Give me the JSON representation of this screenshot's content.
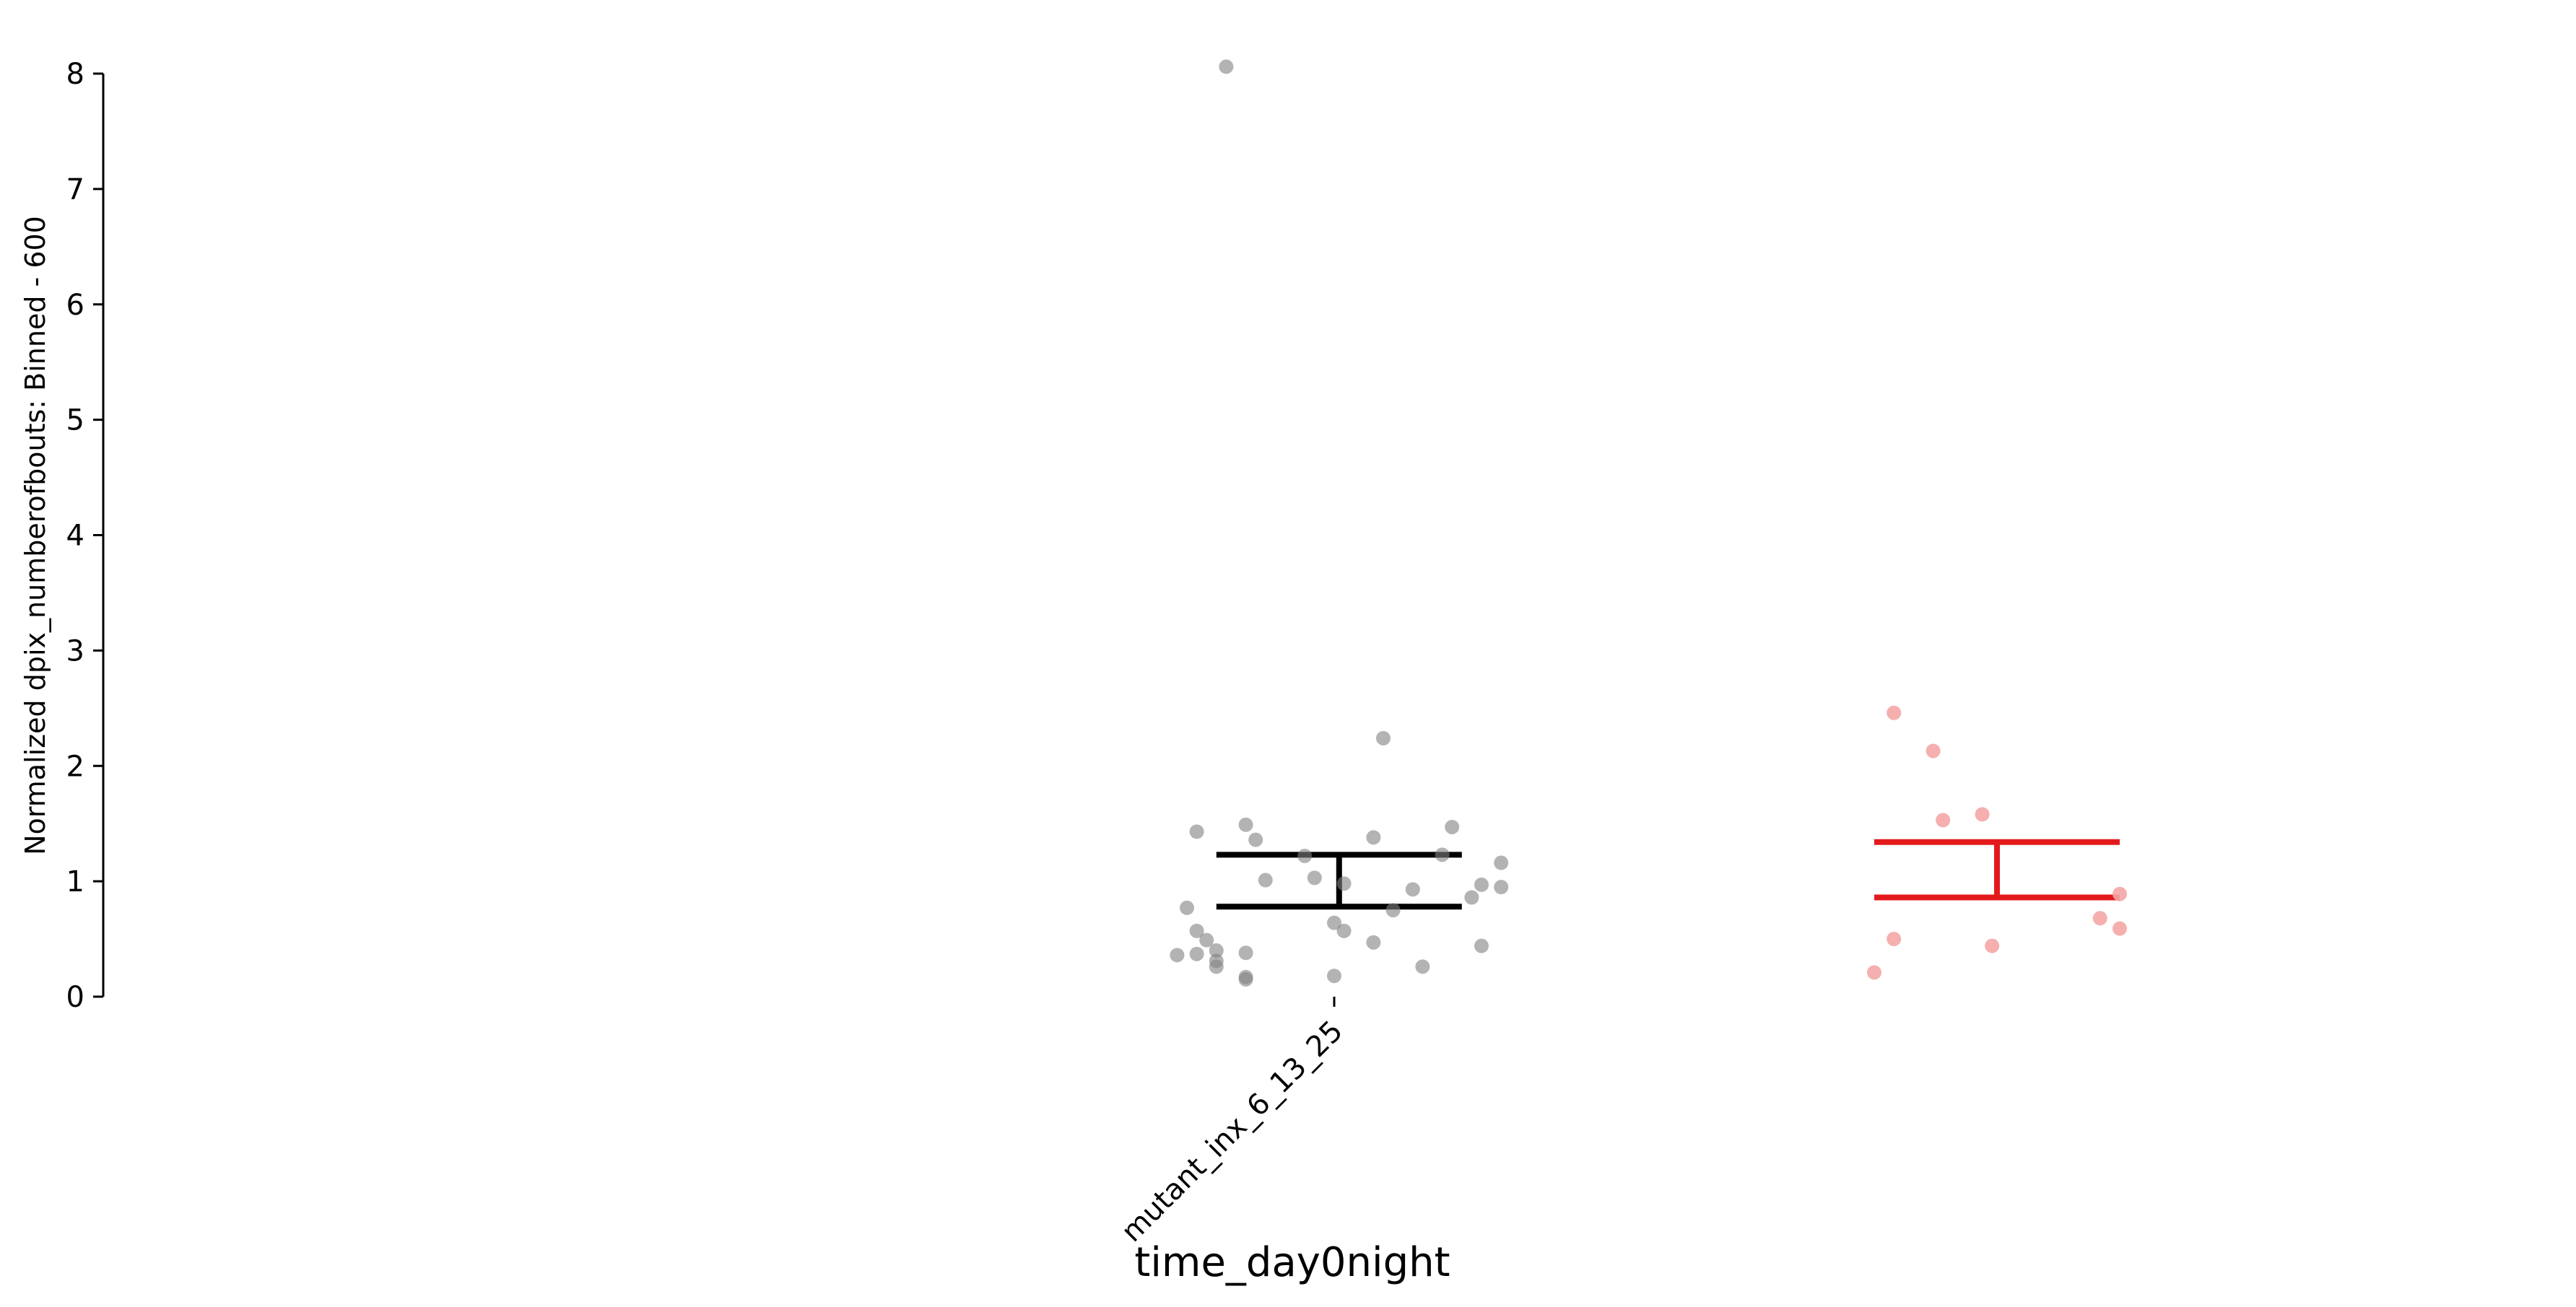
{
  "chart_data": {
    "type": "scatter",
    "subtype": "strip-plot-with-error-bars",
    "title": "",
    "xlabel": "time_day0night",
    "ylabel": "Normalized dpix_numberofbouts: Binned - 600",
    "ylim": [
      0,
      8
    ],
    "yticks": [
      "0",
      "1",
      "2",
      "3",
      "4",
      "5",
      "6",
      "7",
      "8"
    ],
    "categories": [
      "mutant_inx_6_13_25"
    ],
    "grid": false,
    "legend": "none",
    "series": [
      {
        "color": "#808080",
        "error_color": "#000000",
        "mean": 1.0,
        "err_low": 0.78,
        "err_high": 1.23,
        "points": [
          {
            "x": -0.11,
            "y": 8.06
          },
          {
            "x": 0.05,
            "y": 2.24
          },
          {
            "x": -0.14,
            "y": 1.43
          },
          {
            "x": -0.09,
            "y": 1.49
          },
          {
            "x": -0.08,
            "y": 1.36
          },
          {
            "x": -0.03,
            "y": 1.22
          },
          {
            "x": 0.04,
            "y": 1.38
          },
          {
            "x": 0.12,
            "y": 1.47
          },
          {
            "x": 0.11,
            "y": 1.23
          },
          {
            "x": 0.17,
            "y": 1.16
          },
          {
            "x": -0.07,
            "y": 1.01
          },
          {
            "x": -0.02,
            "y": 1.03
          },
          {
            "x": 0.01,
            "y": 0.98
          },
          {
            "x": 0.08,
            "y": 0.93
          },
          {
            "x": 0.15,
            "y": 0.97
          },
          {
            "x": 0.17,
            "y": 0.95
          },
          {
            "x": 0.14,
            "y": 0.86
          },
          {
            "x": -0.15,
            "y": 0.77
          },
          {
            "x": 0.06,
            "y": 0.75
          },
          {
            "x": 0.0,
            "y": 0.64
          },
          {
            "x": 0.01,
            "y": 0.57
          },
          {
            "x": -0.14,
            "y": 0.57
          },
          {
            "x": -0.13,
            "y": 0.49
          },
          {
            "x": 0.04,
            "y": 0.47
          },
          {
            "x": 0.15,
            "y": 0.44
          },
          {
            "x": -0.16,
            "y": 0.36
          },
          {
            "x": -0.14,
            "y": 0.37
          },
          {
            "x": -0.12,
            "y": 0.4
          },
          {
            "x": -0.09,
            "y": 0.38
          },
          {
            "x": -0.12,
            "y": 0.31
          },
          {
            "x": -0.12,
            "y": 0.26
          },
          {
            "x": 0.09,
            "y": 0.26
          },
          {
            "x": -0.09,
            "y": 0.17
          },
          {
            "x": -0.09,
            "y": 0.15
          },
          {
            "x": 0.0,
            "y": 0.18
          }
        ]
      },
      {
        "color": "#f4a6a6",
        "error_color": "#e31a1c",
        "mean": 1.1,
        "err_low": 0.86,
        "err_high": 1.34,
        "points": [
          {
            "x": 0.57,
            "y": 2.46
          },
          {
            "x": 0.61,
            "y": 2.13
          },
          {
            "x": 0.62,
            "y": 1.53
          },
          {
            "x": 0.66,
            "y": 1.58
          },
          {
            "x": 0.8,
            "y": 0.89
          },
          {
            "x": 0.78,
            "y": 0.68
          },
          {
            "x": 0.8,
            "y": 0.59
          },
          {
            "x": 0.57,
            "y": 0.5
          },
          {
            "x": 0.67,
            "y": 0.44
          },
          {
            "x": 0.55,
            "y": 0.21
          }
        ]
      }
    ]
  }
}
